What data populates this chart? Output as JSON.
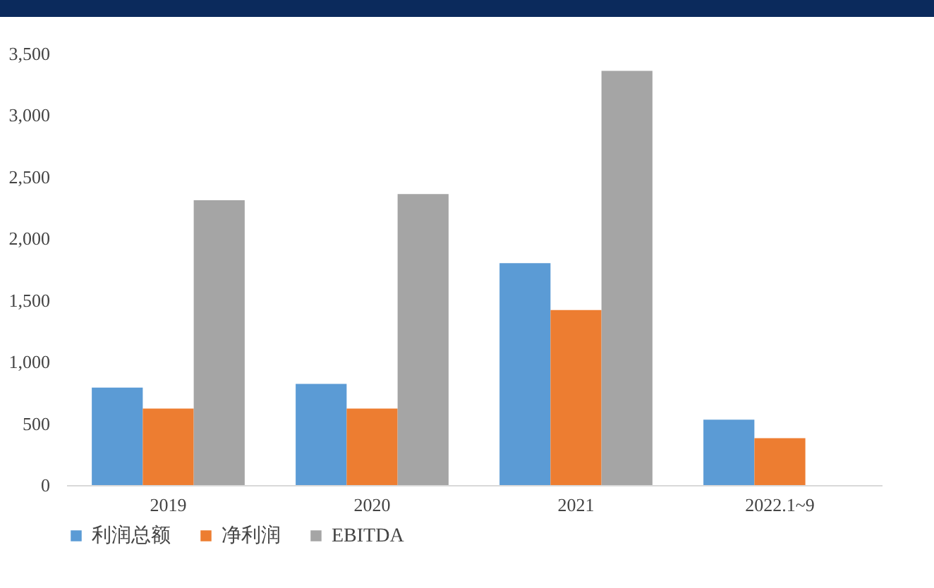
{
  "chart_data": {
    "type": "bar",
    "categories": [
      "2019",
      "2020",
      "2021",
      "2022.1~9"
    ],
    "series": [
      {
        "name": "利润总额",
        "color": "#5b9bd5",
        "values": [
          790,
          820,
          1800,
          530
        ]
      },
      {
        "name": "净利润",
        "color": "#ed7d31",
        "values": [
          620,
          620,
          1420,
          380
        ]
      },
      {
        "name": "EBITDA",
        "color": "#a5a5a5",
        "values": [
          2310,
          2360,
          3360,
          null
        ]
      }
    ],
    "ylim": [
      0,
      3500
    ],
    "yticks": [
      0,
      500,
      {
        "value": 1000,
        "label": "1,000"
      },
      {
        "value": 1500,
        "label": "1,500"
      },
      {
        "value": 2000,
        "label": "2,000"
      },
      {
        "value": 2500,
        "label": "2,500"
      },
      {
        "value": 3000,
        "label": "3,000"
      },
      {
        "value": 3500,
        "label": "3,500"
      }
    ],
    "grid": false,
    "legend": "bottom"
  }
}
